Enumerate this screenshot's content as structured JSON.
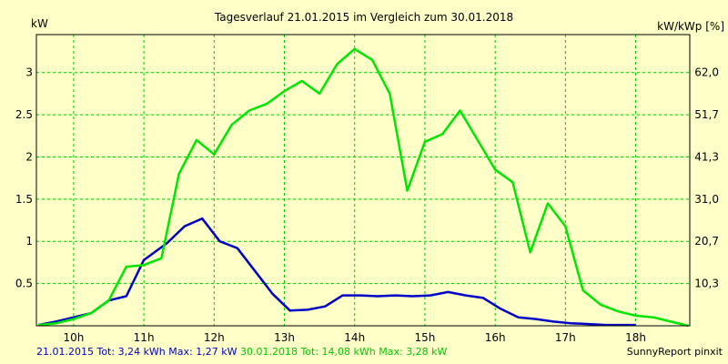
{
  "chart_data": {
    "type": "line",
    "title": "Tagesverlauf 21.01.2015 im Vergleich zum 30.01.2018",
    "ylabel_left": "kW",
    "ylabel_right": "kW/kWp [%]",
    "x_ticks": [
      10,
      11,
      12,
      13,
      14,
      15,
      16,
      17,
      18
    ],
    "x_tick_labels": [
      "10h",
      "11h",
      "12h",
      "13h",
      "14h",
      "15h",
      "16h",
      "17h",
      "18h"
    ],
    "xlim": [
      9.47,
      18.77
    ],
    "ylim": [
      0,
      3.45
    ],
    "y_ticks": [
      0.5,
      1,
      1.5,
      2,
      2.5,
      3
    ],
    "y_tick_labels": [
      "0.5",
      "1",
      "1.5",
      "2",
      "2.5",
      "3"
    ],
    "y2_ticks": [
      0.5,
      1,
      1.5,
      2,
      2.5,
      3
    ],
    "y2_tick_labels": [
      "10,3",
      "20,7",
      "31,0",
      "41,3",
      "51,7",
      "62,0"
    ],
    "grid": true,
    "series": [
      {
        "name": "21.01.2015",
        "color": "#0000c8",
        "x": [
          9.5,
          9.75,
          10.0,
          10.25,
          10.5,
          10.75,
          11.0,
          11.33,
          11.58,
          11.83,
          12.08,
          12.33,
          12.58,
          12.83,
          13.08,
          13.33,
          13.58,
          13.83,
          14.08,
          14.33,
          14.58,
          14.83,
          15.08,
          15.33,
          15.58,
          15.83,
          16.08,
          16.33,
          16.58,
          16.83,
          17.08,
          17.33,
          17.58,
          17.83,
          18.0
        ],
        "values": [
          0.01,
          0.05,
          0.1,
          0.15,
          0.3,
          0.35,
          0.78,
          0.98,
          1.18,
          1.27,
          1.0,
          0.92,
          0.65,
          0.38,
          0.18,
          0.19,
          0.23,
          0.36,
          0.36,
          0.35,
          0.36,
          0.35,
          0.36,
          0.4,
          0.36,
          0.33,
          0.2,
          0.1,
          0.08,
          0.05,
          0.03,
          0.02,
          0.01,
          0.01,
          0.01
        ]
      },
      {
        "name": "30.01.2018",
        "color": "#00e600",
        "x": [
          9.5,
          9.75,
          10.0,
          10.25,
          10.5,
          10.75,
          11.0,
          11.25,
          11.5,
          11.75,
          12.0,
          12.25,
          12.5,
          12.75,
          13.0,
          13.25,
          13.5,
          13.75,
          14.0,
          14.25,
          14.5,
          14.75,
          15.0,
          15.25,
          15.5,
          15.75,
          16.0,
          16.25,
          16.5,
          16.75,
          17.0,
          17.25,
          17.5,
          17.75,
          18.0,
          18.25,
          18.5,
          18.75
        ],
        "values": [
          0.01,
          0.03,
          0.08,
          0.15,
          0.3,
          0.7,
          0.72,
          0.8,
          1.8,
          2.2,
          2.03,
          2.38,
          2.55,
          2.63,
          2.78,
          2.9,
          2.75,
          3.1,
          3.28,
          3.15,
          2.75,
          1.6,
          2.18,
          2.27,
          2.55,
          2.2,
          1.85,
          1.7,
          0.87,
          1.45,
          1.18,
          0.42,
          0.25,
          0.17,
          0.12,
          0.1,
          0.05,
          0.0
        ]
      }
    ]
  },
  "footer": {
    "series1_text": "21.01.2015 Tot: 3,24 kWh Max: 1,27 kW",
    "series1_color": "#0000c8",
    "series2_text": "30.01.2018 Tot: 14,08 kWh Max: 3,28 kW",
    "series2_color": "#00c800",
    "credit": "SunnyReport pinxit"
  },
  "colors": {
    "background": "#ffffc8",
    "grid": "#00c800",
    "axis": "#000000"
  }
}
